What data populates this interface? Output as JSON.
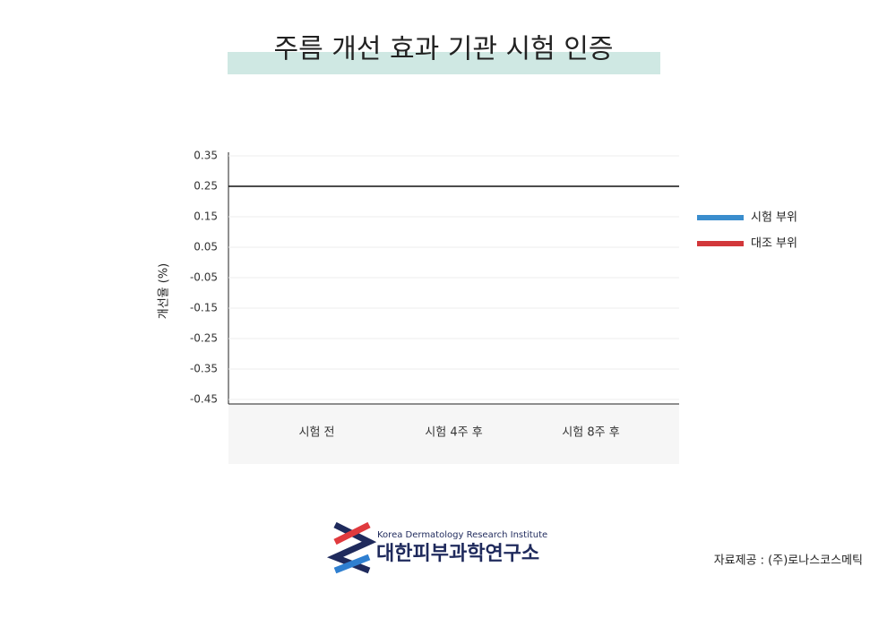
{
  "chart_data": {
    "type": "line",
    "title": "주름 개선 효과 기관 시험 인증",
    "y_label": "개선율 (%)",
    "categories": [
      "시험 전",
      "시험 4주 후",
      "시험 8주 후"
    ],
    "series": [
      {
        "name": "시험 부위",
        "color": "#3a8dcd",
        "values": [
          null,
          null,
          null
        ]
      },
      {
        "name": "대조 부위",
        "color": "#d2373a",
        "values": [
          null,
          null,
          null
        ]
      }
    ],
    "ylim": [
      -0.45,
      0.35
    ],
    "yticks": [
      {
        "value": 0.35,
        "label": "0.35"
      },
      {
        "value": 0.25,
        "label": "0.25"
      },
      {
        "value": 0.15,
        "label": "0.15"
      },
      {
        "value": 0.05,
        "label": "0.05"
      },
      {
        "value": -0.05,
        "label": "-0.05"
      },
      {
        "value": -0.15,
        "label": "-0.15"
      },
      {
        "value": -0.25,
        "label": "-0.25"
      },
      {
        "value": -0.35,
        "label": "-0.35"
      },
      {
        "value": -0.45,
        "label": "-0.45"
      }
    ],
    "reference_line": 0.25,
    "grid": true,
    "legend": "right",
    "logo_subtitle": "Korea Dermatology Research Institute",
    "logo_title": "대한피부과학연구소",
    "source": "자료제공 : (주)로나스코스메틱"
  }
}
